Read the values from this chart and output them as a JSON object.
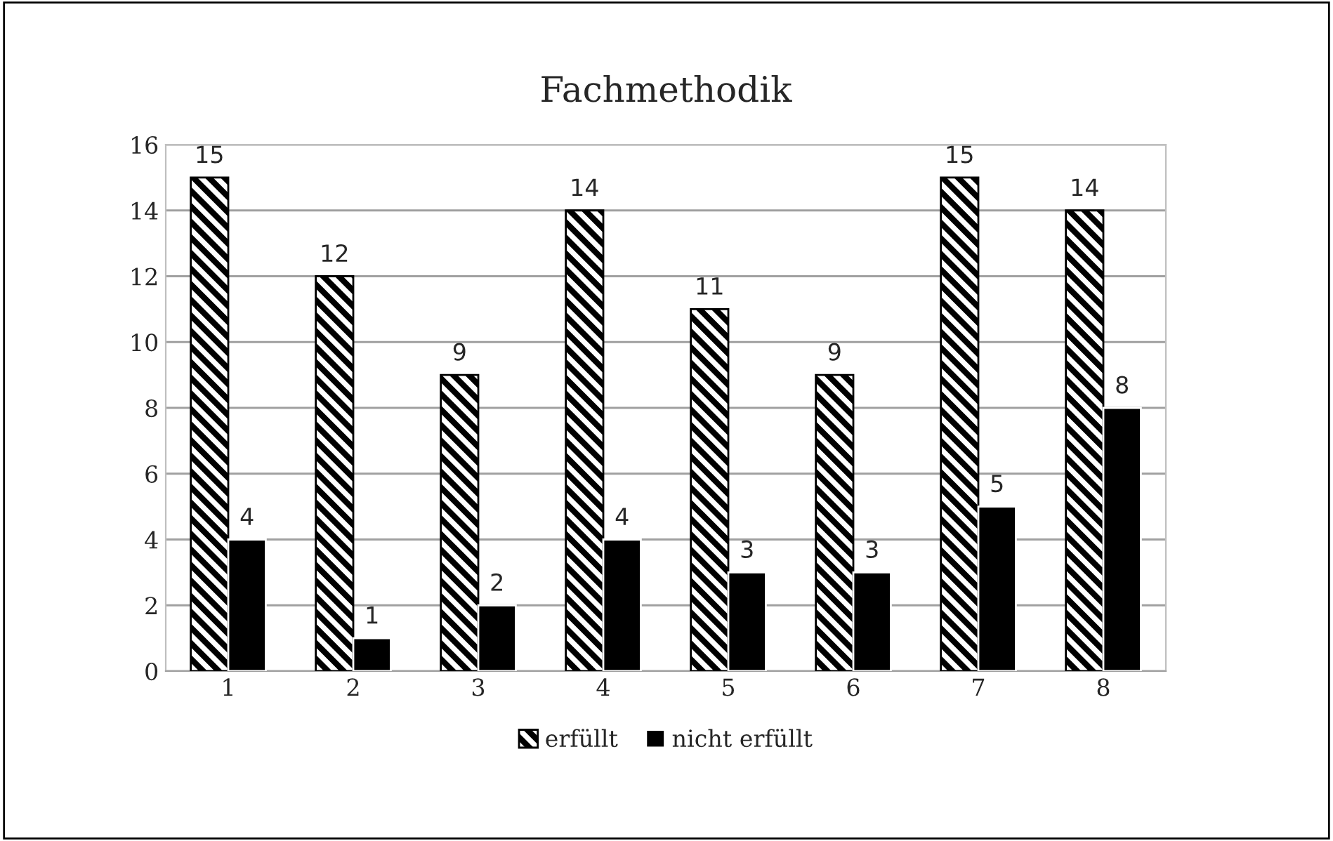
{
  "chart_data": {
    "type": "bar",
    "title": "Fachmethodik",
    "categories": [
      "1",
      "2",
      "3",
      "4",
      "5",
      "6",
      "7",
      "8"
    ],
    "series": [
      {
        "name": "erfüllt",
        "color": "#000000",
        "values": [
          15,
          12,
          9,
          14,
          11,
          9,
          15,
          14
        ]
      },
      {
        "name": "nicht erfüllt",
        "color": "#000000",
        "values": [
          4,
          1,
          2,
          4,
          3,
          3,
          5,
          8
        ]
      }
    ],
    "ylim": [
      0,
      16
    ],
    "yticks": [
      0,
      2,
      4,
      6,
      8,
      10,
      12,
      14,
      16
    ],
    "grid": "y",
    "legend": "bottom",
    "data_labels": true
  }
}
